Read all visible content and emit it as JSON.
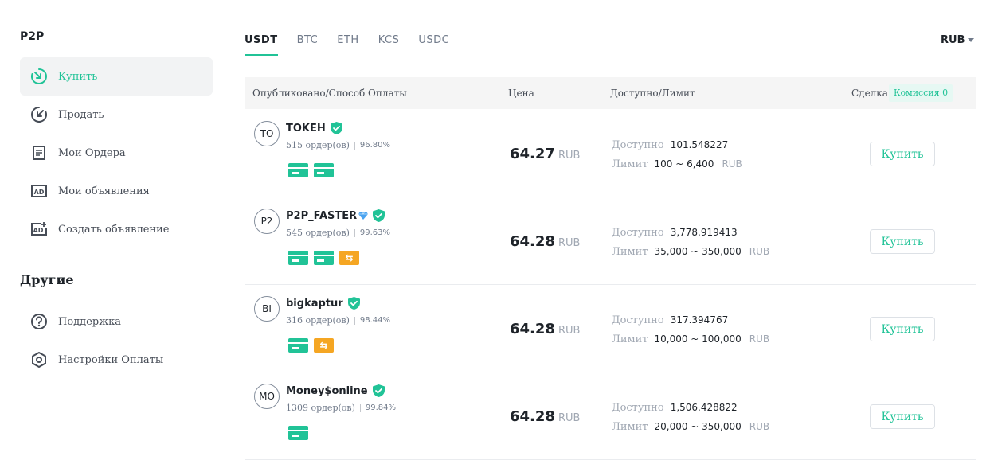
{
  "sidebar": {
    "title": "P2P",
    "items": [
      {
        "label": "Купить",
        "icon": "arrow-down-right-circle-icon"
      },
      {
        "label": "Продать",
        "icon": "arrow-down-left-circle-icon"
      },
      {
        "label": "Мои Ордера",
        "icon": "orders-icon"
      },
      {
        "label": "Мои объявления",
        "icon": "ad-icon"
      },
      {
        "label": "Создать объявление",
        "icon": "create-ad-icon"
      }
    ],
    "others_title": "Другие",
    "other_items": [
      {
        "label": "Поддержка",
        "icon": "help-icon"
      },
      {
        "label": "Настройки Оплаты",
        "icon": "settings-hexagon-icon"
      }
    ]
  },
  "tabs": [
    "USDT",
    "BTC",
    "ETH",
    "KCS",
    "USDC"
  ],
  "active_tab": "USDT",
  "currency": "RUB",
  "table": {
    "headers": {
      "merchant": "Опубликовано/Способ Оплаты",
      "price": "Цена",
      "available": "Доступно/Лимит",
      "trade": "Сделка",
      "fee": "Комиссия 0"
    },
    "available_label": "Доступно",
    "limit_label": "Лимит",
    "buy_label": "Купить",
    "rows": [
      {
        "avatar": "TO",
        "name": "TOKEH",
        "orders": "515 ордер(ов)",
        "rate": "96.80%",
        "price": "64.27",
        "price_currency": "RUB",
        "available": "101.548227",
        "limit": "100 ~ 6,400",
        "limit_currency": "RUB",
        "payments": [
          "card",
          "card"
        ],
        "diamond": false
      },
      {
        "avatar": "P2",
        "name": "P2P_FASTER",
        "orders": "545 ордер(ов)",
        "rate": "99.63%",
        "price": "64.28",
        "price_currency": "RUB",
        "available": "3,778.919413",
        "limit": "35,000 ~ 350,000",
        "limit_currency": "RUB",
        "payments": [
          "card",
          "card",
          "transfer"
        ],
        "diamond": true
      },
      {
        "avatar": "BI",
        "name": "bigkaptur",
        "orders": "316 ордер(ов)",
        "rate": "98.44%",
        "price": "64.28",
        "price_currency": "RUB",
        "available": "317.394767",
        "limit": "10,000 ~ 100,000",
        "limit_currency": "RUB",
        "payments": [
          "card",
          "transfer"
        ],
        "diamond": false
      },
      {
        "avatar": "MO",
        "name": "Money$online",
        "orders": "1309 ордер(ов)",
        "rate": "99.84%",
        "price": "64.28",
        "price_currency": "RUB",
        "available": "1,506.428822",
        "limit": "20,000 ~ 350,000",
        "limit_currency": "RUB",
        "payments": [
          "card"
        ],
        "diamond": false
      }
    ]
  },
  "colors": {
    "accent": "#21c397",
    "transfer": "#f5a623",
    "diamond": "#4aa3f0"
  }
}
